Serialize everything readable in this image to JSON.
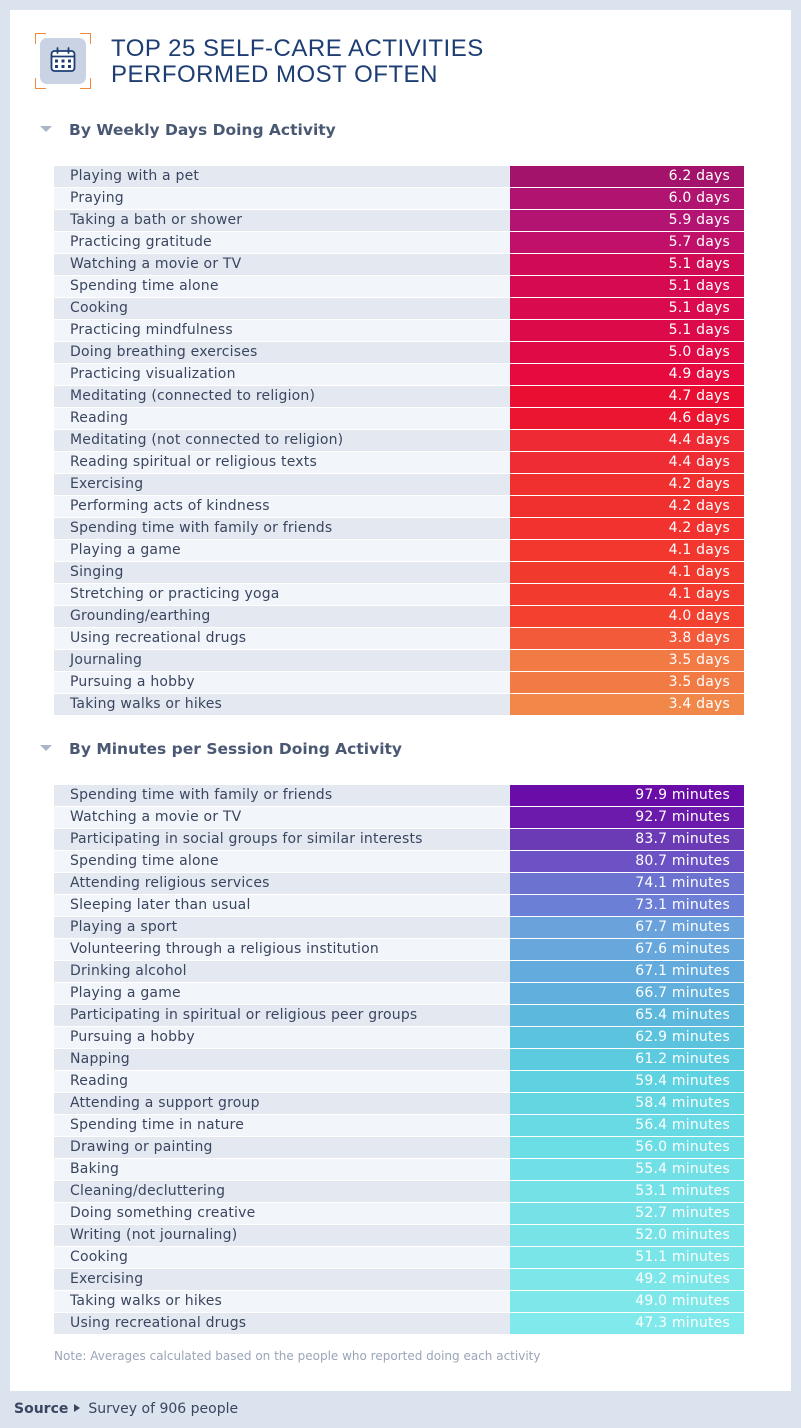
{
  "header": {
    "icon": "calendar-icon",
    "title_line1": "TOP 25 SELF-CARE ACTIVITIES",
    "title_line2": "PERFORMED MOST OFTEN"
  },
  "chart_data": [
    {
      "type": "table",
      "title": "By Weekly Days Doing Activity",
      "unit": "days",
      "categories": [
        "Playing with a pet",
        "Praying",
        "Taking a bath or shower",
        "Practicing gratitude",
        "Watching a movie or TV",
        "Spending time alone",
        "Cooking",
        "Practicing mindfulness",
        "Doing breathing exercises",
        "Practicing visualization",
        "Meditating (connected to religion)",
        "Reading",
        "Meditating (not connected to religion)",
        "Reading spiritual or religious texts",
        "Exercising",
        "Performing acts of kindness",
        "Spending time with family or friends",
        "Playing a game",
        "Singing",
        "Stretching or practicing yoga",
        "Grounding/earthing",
        "Using recreational drugs",
        "Journaling",
        "Pursuing a hobby",
        "Taking walks or hikes"
      ],
      "values": [
        "6.2",
        "6.0",
        "5.9",
        "5.7",
        "5.1",
        "5.1",
        "5.1",
        "5.1",
        "5.0",
        "4.9",
        "4.7",
        "4.6",
        "4.4",
        "4.4",
        "4.2",
        "4.2",
        "4.2",
        "4.1",
        "4.1",
        "4.1",
        "4.0",
        "3.8",
        "3.5",
        "3.5",
        "3.4"
      ],
      "colors": [
        "#a3136c",
        "#b01470",
        "#b31471",
        "#c0106a",
        "#d00a55",
        "#d60a50",
        "#d90a4e",
        "#dd0a4a",
        "#e00a46",
        "#e60a3f",
        "#ea0f32",
        "#ec1530",
        "#ee2a34",
        "#ef2c33",
        "#f02f2f",
        "#f0302e",
        "#f1322e",
        "#f2382e",
        "#f2392e",
        "#f23a2f",
        "#f3402f",
        "#f35a3a",
        "#f27a45",
        "#f27b45",
        "#f2874a"
      ]
    },
    {
      "type": "table",
      "title": "By Minutes per Session Doing Activity",
      "unit": "minutes",
      "categories": [
        "Spending time with family or friends",
        "Watching a movie or TV",
        "Participating in social groups for similar interests",
        "Spending time alone",
        "Attending religious services",
        "Sleeping later than usual",
        "Playing a sport",
        "Volunteering through a religious institution",
        "Drinking alcohol",
        "Playing a game",
        "Participating in spiritual or religious peer groups",
        "Pursuing a hobby",
        "Napping",
        "Reading",
        "Attending a support group",
        "Spending time in nature",
        "Drawing or painting",
        "Baking",
        "Cleaning/decluttering",
        "Doing something creative",
        "Writing (not journaling)",
        "Cooking",
        "Exercising",
        "Taking walks or hikes",
        "Using recreational drugs"
      ],
      "values": [
        "97.9",
        "92.7",
        "83.7",
        "80.7",
        "74.1",
        "73.1",
        "67.7",
        "67.6",
        "67.1",
        "66.7",
        "65.4",
        "62.9",
        "61.2",
        "59.4",
        "58.4",
        "56.4",
        "56.0",
        "55.4",
        "53.1",
        "52.7",
        "52.0",
        "51.1",
        "49.2",
        "49.0",
        "47.3"
      ],
      "colors": [
        "#6a0da8",
        "#6c1aab",
        "#6b3bb5",
        "#6c52c4",
        "#6b72d0",
        "#6b7fd6",
        "#6aa2dc",
        "#67a7dc",
        "#63abdc",
        "#61afdc",
        "#5cb8dd",
        "#5cc3df",
        "#5ccadf",
        "#5ed2e0",
        "#62d6e1",
        "#67dae3",
        "#6bdde4",
        "#70dfe6",
        "#74e1e6",
        "#76e2e7",
        "#78e3e7",
        "#7ae5e8",
        "#7ce6e9",
        "#7ee7ea",
        "#80e9eb"
      ]
    }
  ],
  "note": "Note: Averages calculated based on the people who reported doing each activity",
  "source": {
    "label": "Source",
    "text": "Survey of 906 people"
  }
}
